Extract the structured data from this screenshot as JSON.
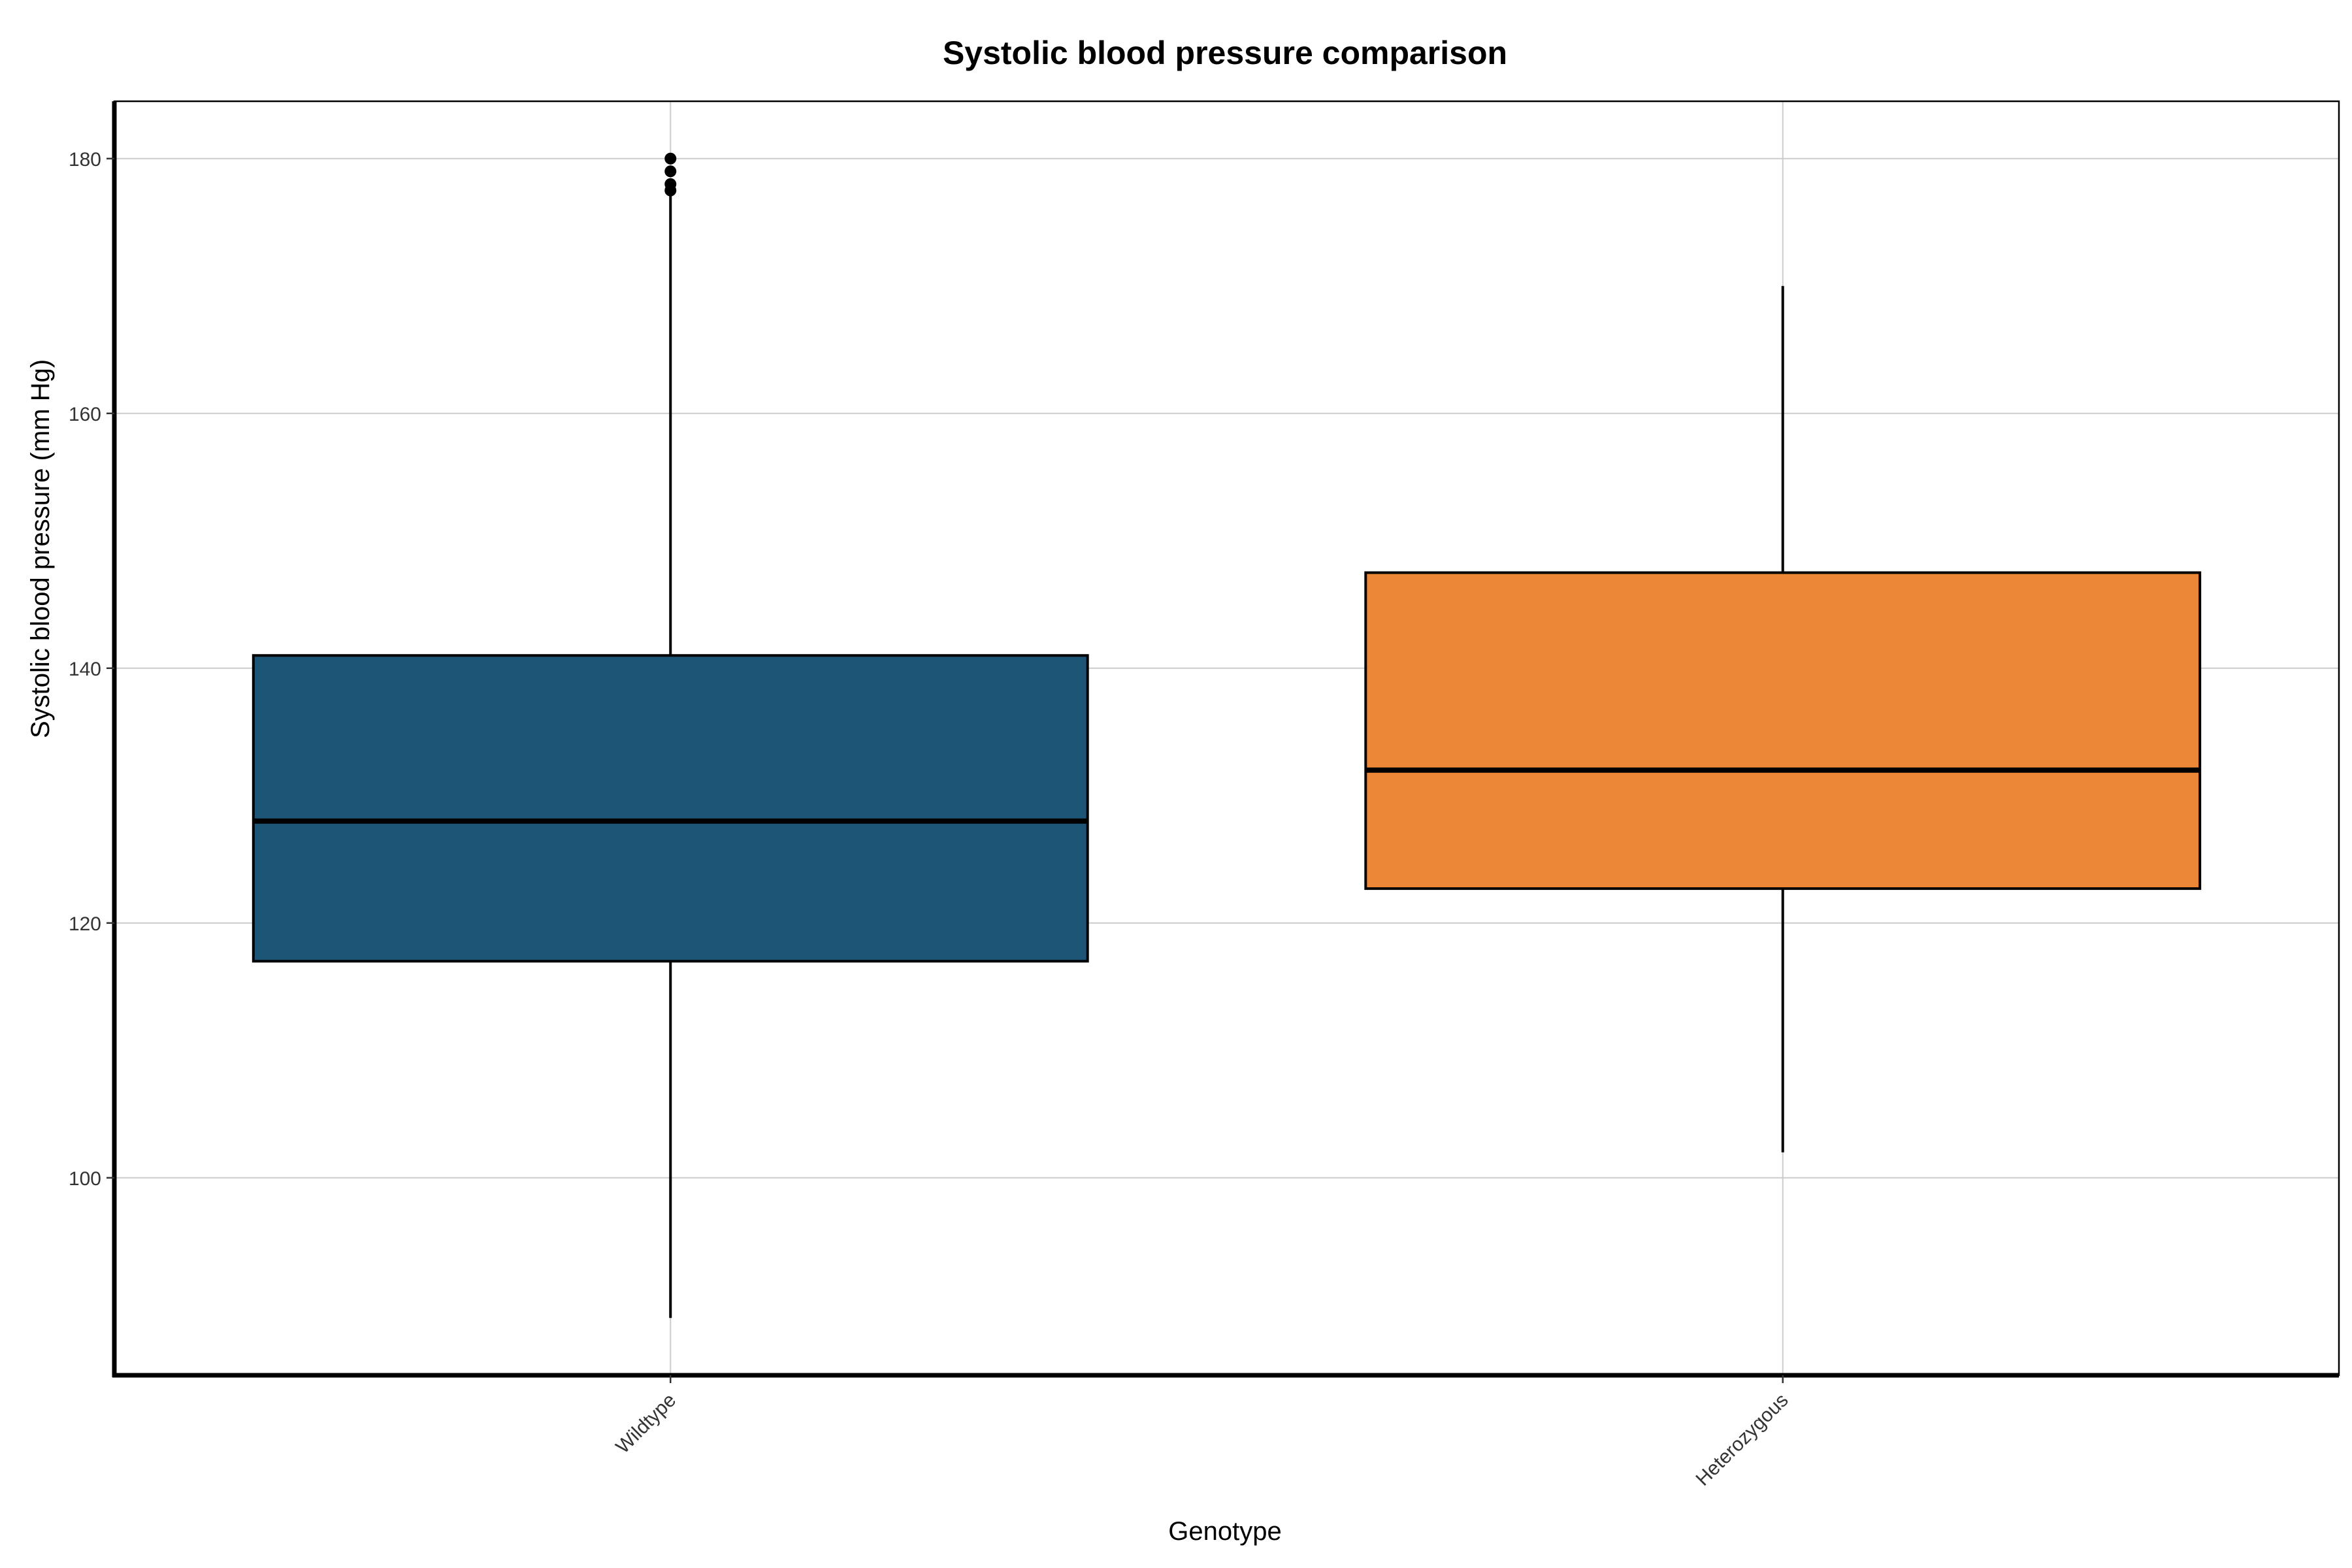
{
  "chart_data": {
    "type": "box",
    "title": "Systolic blood pressure comparison",
    "xlabel": "Genotype",
    "ylabel": "Systolic blood pressure (mm Hg)",
    "ylim": [
      84.5,
      184.5
    ],
    "yticks": [
      100,
      120,
      140,
      160,
      180
    ],
    "grid": true,
    "categories": [
      "Wildtype",
      "Heterozygous"
    ],
    "series": [
      {
        "category": "Wildtype",
        "color": "#1d5576",
        "whisker_low": 89,
        "q1": 117,
        "median": 128,
        "q3": 141,
        "whisker_high": 177.5,
        "outliers": [
          177.5,
          178,
          179,
          180
        ]
      },
      {
        "category": "Heterozygous",
        "color": "#eb8736",
        "whisker_low": 102,
        "q1": 122.7,
        "median": 132,
        "q3": 147.5,
        "whisker_high": 170,
        "outliers": []
      }
    ]
  }
}
